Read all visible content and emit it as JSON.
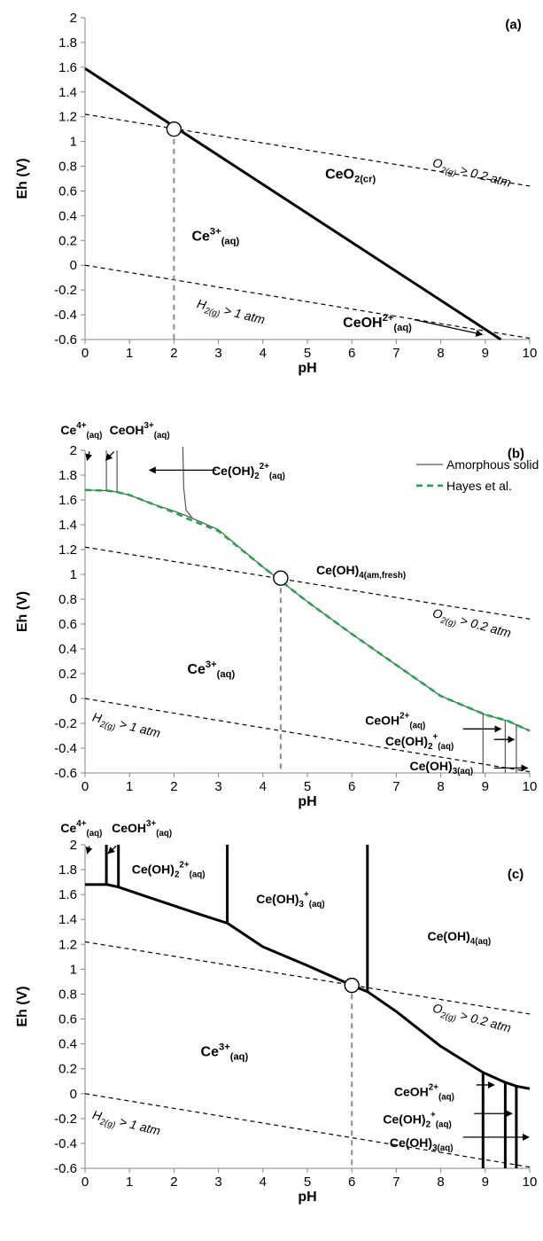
{
  "chart_data": [
    {
      "panel": "(a)",
      "type": "line",
      "xlabel": "pH",
      "ylabel": "Eh (V)",
      "xlim": [
        0,
        10
      ],
      "ylim": [
        -0.6,
        2
      ],
      "x_ticks": [
        "0",
        "1",
        "2",
        "3",
        "4",
        "5",
        "6",
        "7",
        "8",
        "9",
        "10"
      ],
      "y_ticks": [
        "-0.6",
        "-0.4",
        "-0.2",
        "0",
        "0.2",
        "0.4",
        "0.6",
        "0.8",
        "1",
        "1.2",
        "1.4",
        "1.6",
        "1.8",
        "2"
      ],
      "series": [
        {
          "style": "solid-thick",
          "x": [
            0,
            9.35
          ],
          "y": [
            1.59,
            -0.6
          ]
        },
        {
          "style": "dashed",
          "x": [
            0,
            10
          ],
          "y": [
            1.22,
            0.64
          ]
        },
        {
          "style": "dashed",
          "x": [
            0,
            10
          ],
          "y": [
            0.0,
            -0.59
          ]
        },
        {
          "style": "grey-dashed",
          "x": [
            2.0,
            2.0
          ],
          "y": [
            1.1,
            -0.6
          ]
        }
      ],
      "markers": [
        {
          "x": 2.0,
          "y": 1.1
        }
      ],
      "region_labels": [
        {
          "base": "Ce",
          "sup": "3+",
          "sub": "(aq)",
          "x": 2.4,
          "y": 0.2,
          "size": "region"
        },
        {
          "base": "CeO",
          "sub": "2(cr)",
          "x": 5.4,
          "y": 0.7,
          "size": "region"
        },
        {
          "base": "CeOH",
          "sup": "2+",
          "sub": "(aq)",
          "x": 5.8,
          "y": -0.5,
          "size": "region"
        }
      ],
      "gas_labels": [
        {
          "base": "O",
          "sub": "2(g)",
          "rest": " > 0.2 atm",
          "x": 7.8,
          "y": 0.8,
          "angle": 15
        },
        {
          "base": "H",
          "sub": "2(g)",
          "rest": " > 1 atm",
          "x": 2.5,
          "y": -0.34,
          "angle": 14
        }
      ],
      "arrows": [
        {
          "x1": 7.4,
          "y1": -0.44,
          "x2": 8.93,
          "y2": -0.56
        }
      ],
      "panel_label_pos": [
        9.45,
        1.91
      ],
      "scale": {
        "y": 0.6538
      },
      "units_note": ""
    },
    {
      "panel": "(b)",
      "type": "line",
      "xlabel": "pH",
      "ylabel": "Eh (V)",
      "xlim": [
        0,
        10
      ],
      "ylim": [
        -0.6,
        2
      ],
      "x_ticks": [
        "0",
        "1",
        "2",
        "3",
        "4",
        "5",
        "6",
        "7",
        "8",
        "9",
        "10"
      ],
      "y_ticks": [
        "-0.6",
        "-0.4",
        "-0.2",
        "0",
        "0.2",
        "0.4",
        "0.6",
        "0.8",
        "1",
        "1.2",
        "1.4",
        "1.6",
        "1.8",
        "2"
      ],
      "series": [
        {
          "name": "Amorphous solid",
          "style": "thin",
          "x": [
            0,
            0.5,
            0.7,
            1.0,
            1.5,
            2.0,
            2.3,
            3.0,
            4.0,
            5.0,
            6.0,
            7.0,
            8.0,
            9.0,
            9.5,
            10.0
          ],
          "y": [
            1.68,
            1.675,
            1.665,
            1.64,
            1.57,
            1.51,
            1.47,
            1.36,
            1.06,
            0.78,
            0.52,
            0.27,
            0.02,
            -0.13,
            -0.18,
            -0.26
          ]
        },
        {
          "name": "Hayes et al.",
          "style": "green-dashed",
          "x": [
            0,
            0.5,
            0.7,
            1.0,
            1.5,
            2.0,
            2.3,
            3.0,
            4.0,
            5.0,
            6.0,
            7.0,
            8.0,
            9.0,
            9.5,
            10.0
          ],
          "y": [
            1.68,
            1.675,
            1.665,
            1.64,
            1.57,
            1.5,
            1.45,
            1.35,
            1.06,
            0.78,
            0.52,
            0.27,
            0.02,
            -0.13,
            -0.18,
            -0.26
          ]
        },
        {
          "style": "thin",
          "x": [
            0.48,
            0.48
          ],
          "y": [
            1.675,
            2.0
          ]
        },
        {
          "style": "thin",
          "x": [
            0.72,
            0.72
          ],
          "y": [
            1.665,
            2.0
          ]
        },
        {
          "style": "thin-curve",
          "x": [
            2.2,
            2.22,
            2.27,
            2.4
          ],
          "y": [
            2.03,
            1.7,
            1.52,
            1.46
          ]
        },
        {
          "style": "thin",
          "x": [
            8.95,
            8.95
          ],
          "y": [
            -0.12,
            -0.6
          ]
        },
        {
          "style": "thin",
          "x": [
            9.45,
            9.45
          ],
          "y": [
            -0.175,
            -0.6
          ]
        },
        {
          "style": "thin",
          "x": [
            9.7,
            9.7
          ],
          "y": [
            -0.21,
            -0.6
          ]
        },
        {
          "style": "dashed",
          "x": [
            0,
            10
          ],
          "y": [
            1.22,
            0.64
          ]
        },
        {
          "style": "dashed",
          "x": [
            0,
            10
          ],
          "y": [
            0.0,
            -0.59
          ]
        },
        {
          "style": "grey-dashed",
          "x": [
            4.4,
            4.4
          ],
          "y": [
            0.97,
            -0.6
          ]
        }
      ],
      "markers": [
        {
          "x": 4.4,
          "y": 0.97
        }
      ],
      "legend": [
        {
          "label": "Amorphous solid",
          "style": "thin",
          "x": 7.45,
          "y": 1.85
        },
        {
          "label": "Hayes et al.",
          "style": "green-dashed",
          "x": 7.45,
          "y": 1.68
        }
      ],
      "region_labels": [
        {
          "base": "Ce",
          "sup": "4+",
          "sub": "(aq)",
          "x": -0.55,
          "y": 2.13,
          "size": "small"
        },
        {
          "base": "CeOH",
          "sup": "3+",
          "sub": "(aq)",
          "x": 0.55,
          "y": 2.13,
          "size": "small"
        },
        {
          "base": "Ce(OH)",
          "sub1": "2",
          "sup": "2+",
          "sub": "(aq)",
          "x": 2.85,
          "y": 1.8,
          "size": "small"
        },
        {
          "base": "Ce(OH)",
          "sub": "4(am,fresh)",
          "x": 5.2,
          "y": 1.0,
          "size": "small"
        },
        {
          "base": "Ce",
          "sup": "3+",
          "sub": "(aq)",
          "x": 2.3,
          "y": 0.2,
          "size": "region"
        },
        {
          "base": "CeOH",
          "sup": "2+",
          "sub": "(aq)",
          "x": 6.3,
          "y": -0.21,
          "size": "small"
        },
        {
          "base": "Ce(OH)",
          "sub1": "2",
          "sup": "+",
          "sub": "(aq)",
          "x": 6.75,
          "y": -0.38,
          "size": "small"
        },
        {
          "base": "Ce(OH)",
          "sub": "3(aq)",
          "x": 7.3,
          "y": -0.58,
          "size": "small"
        }
      ],
      "gas_labels": [
        {
          "base": "O",
          "sub": "2(g)",
          "rest": " > 0.2 atm",
          "x": 7.8,
          "y": 0.66,
          "angle": 15
        },
        {
          "base": "H",
          "sub": "2(g)",
          "rest": " > 1 atm",
          "x": 0.15,
          "y": -0.18,
          "angle": 14
        }
      ],
      "arrows": [
        {
          "x1": 0.1,
          "y1": 1.99,
          "x2": 0.05,
          "y2": 1.92
        },
        {
          "x1": 0.65,
          "y1": 1.99,
          "x2": 0.47,
          "y2": 1.92
        },
        {
          "x1": 2.95,
          "y1": 1.84,
          "x2": 1.45,
          "y2": 1.84
        },
        {
          "x1": 8.5,
          "y1": -0.245,
          "x2": 9.35,
          "y2": -0.245
        },
        {
          "x1": 9.2,
          "y1": -0.33,
          "x2": 9.65,
          "y2": -0.33
        },
        {
          "x1": 9.2,
          "y1": -0.56,
          "x2": 9.95,
          "y2": -0.56
        }
      ],
      "panel_label_pos": [
        9.5,
        1.94
      ]
    },
    {
      "panel": "(c)",
      "type": "line",
      "xlabel": "pH",
      "ylabel": "Eh (V)",
      "xlim": [
        0,
        10
      ],
      "ylim": [
        -0.6,
        2
      ],
      "x_ticks": [
        "0",
        "1",
        "2",
        "3",
        "4",
        "5",
        "6",
        "7",
        "8",
        "9",
        "10"
      ],
      "y_ticks": [
        "-0.6",
        "-0.4",
        "-0.2",
        "0",
        "0.2",
        "0.4",
        "0.6",
        "0.8",
        "1",
        "1.2",
        "1.4",
        "1.6",
        "1.8",
        "2"
      ],
      "series": [
        {
          "style": "solid-thick",
          "x": [
            0,
            0.5,
            0.75,
            1.5,
            2.5,
            3.2,
            4.0,
            5.0,
            6.0,
            6.35,
            7.0,
            8.0,
            8.95,
            9.45,
            9.7,
            10.0
          ],
          "y": [
            1.68,
            1.68,
            1.66,
            1.57,
            1.45,
            1.37,
            1.18,
            1.03,
            0.87,
            0.82,
            0.66,
            0.38,
            0.17,
            0.09,
            0.06,
            0.04
          ]
        },
        {
          "style": "solid-thick",
          "x": [
            0.48,
            0.48
          ],
          "y": [
            1.68,
            2.0
          ]
        },
        {
          "style": "solid-thick",
          "x": [
            0.75,
            0.75
          ],
          "y": [
            1.66,
            2.0
          ]
        },
        {
          "style": "solid-thick",
          "x": [
            3.2,
            3.2
          ],
          "y": [
            1.37,
            2.0
          ]
        },
        {
          "style": "solid-thick",
          "x": [
            6.35,
            6.35
          ],
          "y": [
            0.82,
            2.0
          ]
        },
        {
          "style": "solid-thick",
          "x": [
            8.95,
            8.95
          ],
          "y": [
            0.17,
            -0.6
          ]
        },
        {
          "style": "solid-thick",
          "x": [
            9.45,
            9.45
          ],
          "y": [
            0.09,
            -0.6
          ]
        },
        {
          "style": "solid-thick",
          "x": [
            9.7,
            9.7
          ],
          "y": [
            0.06,
            -0.6
          ]
        },
        {
          "style": "dashed",
          "x": [
            0,
            10
          ],
          "y": [
            1.22,
            0.64
          ]
        },
        {
          "style": "dashed",
          "x": [
            0,
            10
          ],
          "y": [
            0.0,
            -0.59
          ]
        },
        {
          "style": "grey-dashed",
          "x": [
            6.0,
            6.0
          ],
          "y": [
            0.88,
            -0.6
          ]
        }
      ],
      "markers": [
        {
          "x": 6.0,
          "y": 0.87
        }
      ],
      "region_labels": [
        {
          "base": "Ce",
          "sup": "4+",
          "sub": "(aq)",
          "x": -0.55,
          "y": 2.1,
          "size": "small"
        },
        {
          "base": "CeOH",
          "sup": "3+",
          "sub": "(aq)",
          "x": 0.6,
          "y": 2.1,
          "size": "small"
        },
        {
          "base": "Ce(OH)",
          "sub1": "2",
          "sup": "2+",
          "sub": "(aq)",
          "x": 1.05,
          "y": 1.77,
          "size": "small"
        },
        {
          "base": "Ce(OH)",
          "sub1": "3",
          "sup": "+",
          "sub": "(aq)",
          "x": 3.85,
          "y": 1.53,
          "size": "small"
        },
        {
          "base": "Ce(OH)",
          "sub": "4(aq)",
          "x": 7.7,
          "y": 1.23,
          "size": "small"
        },
        {
          "base": "Ce",
          "sup": "3+",
          "sub": "(aq)",
          "x": 2.6,
          "y": 0.3,
          "size": "region"
        },
        {
          "base": "CeOH",
          "sup": "2+",
          "sub": "(aq)",
          "x": 6.95,
          "y": -0.02,
          "size": "small"
        },
        {
          "base": "Ce(OH)",
          "sub1": "2",
          "sup": "+",
          "sub": "(aq)",
          "x": 6.7,
          "y": -0.24,
          "size": "small"
        },
        {
          "base": "Ce(OH)",
          "sub": "3(aq)",
          "x": 6.85,
          "y": -0.43,
          "size": "small"
        }
      ],
      "gas_labels": [
        {
          "base": "O",
          "sub": "2(g)",
          "rest": " > 0.2 atm",
          "x": 7.8,
          "y": 0.66,
          "angle": 15
        },
        {
          "base": "H",
          "sub": "2(g)",
          "rest": " > 1 atm",
          "x": 0.15,
          "y": -0.2,
          "angle": 14
        }
      ],
      "arrows": [
        {
          "x1": 0.1,
          "y1": 1.99,
          "x2": 0.05,
          "y2": 1.93
        },
        {
          "x1": 0.7,
          "y1": 1.99,
          "x2": 0.52,
          "y2": 1.93
        },
        {
          "x1": 8.8,
          "y1": 0.07,
          "x2": 9.2,
          "y2": 0.07
        },
        {
          "x1": 8.75,
          "y1": -0.16,
          "x2": 9.6,
          "y2": -0.16
        },
        {
          "x1": 8.5,
          "y1": -0.35,
          "x2": 9.98,
          "y2": -0.35
        }
      ],
      "panel_label_pos": [
        9.5,
        1.73
      ]
    }
  ]
}
